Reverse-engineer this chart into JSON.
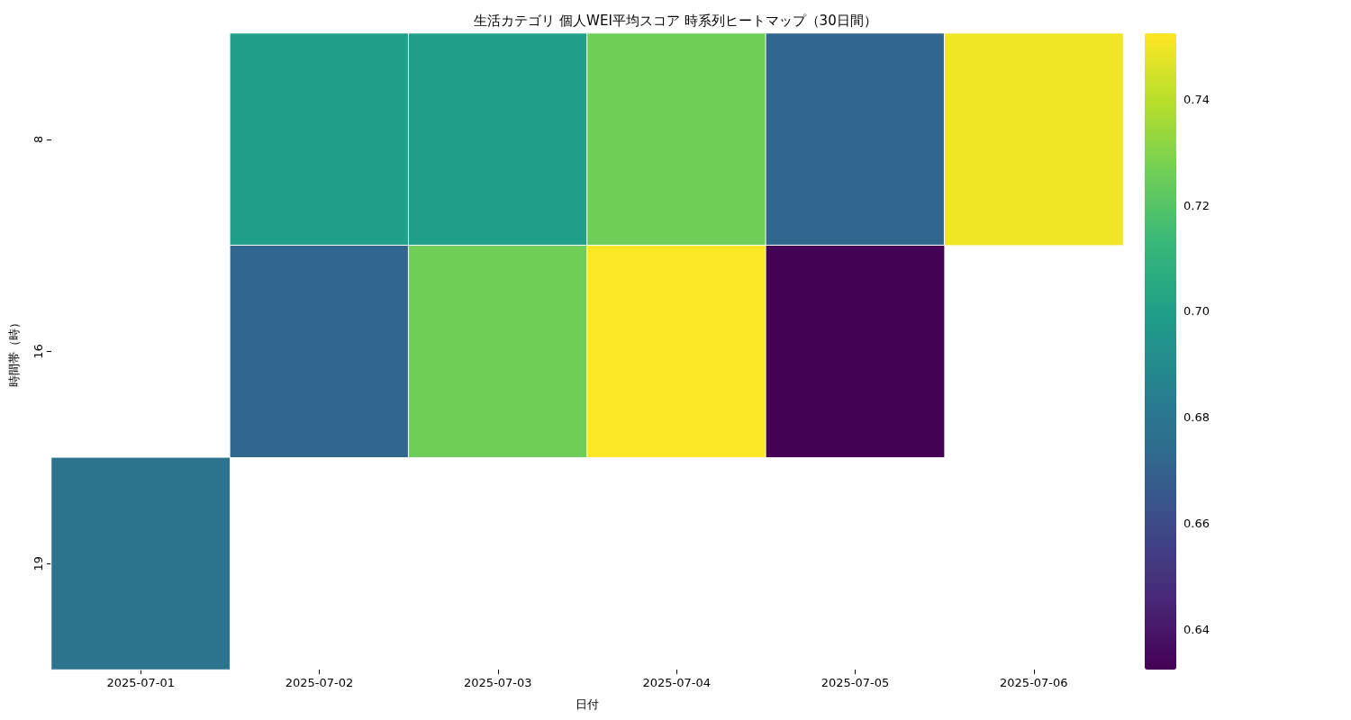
{
  "chart_data": {
    "type": "heatmap",
    "title": "生活カテゴリ 個人WEI平均スコア 時系列ヒートマップ（30日間）",
    "xlabel": "日付",
    "ylabel": "時間帯（時）",
    "categories": [
      "2025-07-01",
      "2025-07-02",
      "2025-07-03",
      "2025-07-04",
      "2025-07-05",
      "2025-07-06"
    ],
    "y_categories": [
      "8",
      "16",
      "19"
    ],
    "cells": [
      [
        null,
        0.7,
        0.7,
        0.726,
        0.672,
        0.75
      ],
      [
        null,
        0.672,
        0.726,
        0.752,
        0.633,
        null
      ],
      [
        0.678,
        null,
        null,
        null,
        null,
        null
      ]
    ],
    "clim": [
      0.6325,
      0.7524
    ],
    "cticks": [
      0.64,
      0.66,
      0.68,
      {
        "value": 0.7,
        "label": "0.70"
      },
      0.72,
      0.74
    ]
  }
}
